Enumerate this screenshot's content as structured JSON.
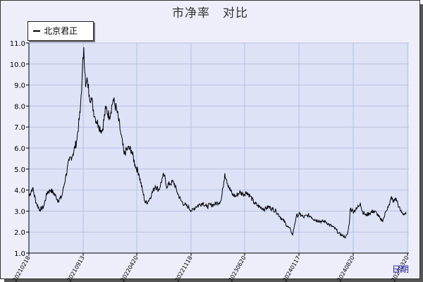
{
  "chart_data": {
    "type": "line",
    "title": "市净率　对比",
    "xlabel": "日期",
    "ylabel": "",
    "ylim": [
      1.0,
      11.0
    ],
    "yticks": [
      1.0,
      2.0,
      3.0,
      4.0,
      5.0,
      6.0,
      7.0,
      8.0,
      9.0,
      10.0,
      11.0
    ],
    "xticks": [
      "20210218",
      "20210913",
      "20220420",
      "20221118",
      "20230620",
      "20240117",
      "20240820",
      "20250320"
    ],
    "grid": true,
    "legend_position": "top-left",
    "series": [
      {
        "name": "北京君正",
        "color": "#000000",
        "points": [
          [
            0,
            3.7
          ],
          [
            4,
            4.1
          ],
          [
            8,
            3.4
          ],
          [
            12,
            3.05
          ],
          [
            16,
            3.2
          ],
          [
            20,
            3.9
          ],
          [
            24,
            4.0
          ],
          [
            28,
            3.8
          ],
          [
            32,
            3.5
          ],
          [
            36,
            3.7
          ],
          [
            40,
            4.6
          ],
          [
            44,
            5.4
          ],
          [
            48,
            5.7
          ],
          [
            52,
            6.3
          ],
          [
            56,
            7.7
          ],
          [
            58,
            9.3
          ],
          [
            60,
            10.8
          ],
          [
            62,
            8.9
          ],
          [
            64,
            9.2
          ],
          [
            66,
            8.5
          ],
          [
            68,
            8.4
          ],
          [
            72,
            7.5
          ],
          [
            76,
            7.1
          ],
          [
            80,
            6.8
          ],
          [
            84,
            7.9
          ],
          [
            88,
            7.5
          ],
          [
            92,
            8.3
          ],
          [
            96,
            7.8
          ],
          [
            100,
            6.8
          ],
          [
            104,
            5.7
          ],
          [
            108,
            6.0
          ],
          [
            112,
            5.9
          ],
          [
            116,
            5.2
          ],
          [
            120,
            4.8
          ],
          [
            124,
            4.0
          ],
          [
            127,
            3.4
          ],
          [
            130,
            3.45
          ],
          [
            134,
            3.8
          ],
          [
            138,
            4.2
          ],
          [
            142,
            4.0
          ],
          [
            146,
            4.6
          ],
          [
            148,
            4.7
          ],
          [
            150,
            4.2
          ],
          [
            154,
            4.3
          ],
          [
            158,
            4.4
          ],
          [
            162,
            3.9
          ],
          [
            166,
            3.5
          ],
          [
            170,
            3.3
          ],
          [
            174,
            3.2
          ],
          [
            178,
            3.0
          ],
          [
            182,
            3.2
          ],
          [
            186,
            3.3
          ],
          [
            190,
            3.4
          ],
          [
            194,
            3.2
          ],
          [
            198,
            3.3
          ],
          [
            202,
            3.3
          ],
          [
            206,
            3.4
          ],
          [
            210,
            3.5
          ],
          [
            212,
            4.1
          ],
          [
            214,
            4.8
          ],
          [
            216,
            4.5
          ],
          [
            218,
            4.2
          ],
          [
            222,
            3.8
          ],
          [
            226,
            3.7
          ],
          [
            230,
            3.9
          ],
          [
            234,
            3.8
          ],
          [
            238,
            3.9
          ],
          [
            242,
            3.7
          ],
          [
            246,
            3.4
          ],
          [
            250,
            3.25
          ],
          [
            254,
            3.15
          ],
          [
            258,
            3.1
          ],
          [
            262,
            3.2
          ],
          [
            266,
            3.1
          ],
          [
            270,
            3.0
          ],
          [
            274,
            2.75
          ],
          [
            278,
            2.55
          ],
          [
            282,
            2.3
          ],
          [
            286,
            2.1
          ],
          [
            288,
            1.85
          ],
          [
            290,
            2.3
          ],
          [
            292,
            2.75
          ],
          [
            296,
            2.85
          ],
          [
            300,
            2.7
          ],
          [
            304,
            2.8
          ],
          [
            308,
            2.75
          ],
          [
            312,
            2.6
          ],
          [
            316,
            2.55
          ],
          [
            320,
            2.5
          ],
          [
            324,
            2.5
          ],
          [
            328,
            2.35
          ],
          [
            332,
            2.25
          ],
          [
            336,
            2.1
          ],
          [
            338,
            1.95
          ],
          [
            342,
            1.85
          ],
          [
            346,
            1.75
          ],
          [
            348,
            1.9
          ],
          [
            350,
            2.4
          ],
          [
            351,
            3.1
          ],
          [
            354,
            3.0
          ],
          [
            358,
            3.1
          ],
          [
            362,
            3.4
          ],
          [
            364,
            3.0
          ],
          [
            368,
            2.8
          ],
          [
            372,
            2.9
          ],
          [
            376,
            3.0
          ],
          [
            380,
            2.9
          ],
          [
            384,
            2.6
          ],
          [
            386,
            2.55
          ],
          [
            388,
            2.7
          ],
          [
            390,
            3.0
          ],
          [
            392,
            3.2
          ],
          [
            394,
            3.3
          ],
          [
            396,
            3.7
          ],
          [
            398,
            3.4
          ],
          [
            400,
            3.6
          ],
          [
            402,
            3.5
          ],
          [
            404,
            3.2
          ],
          [
            406,
            3.0
          ],
          [
            408,
            2.9
          ],
          [
            412,
            2.85
          ]
        ]
      }
    ]
  },
  "legend": {
    "label": "北京君正"
  }
}
